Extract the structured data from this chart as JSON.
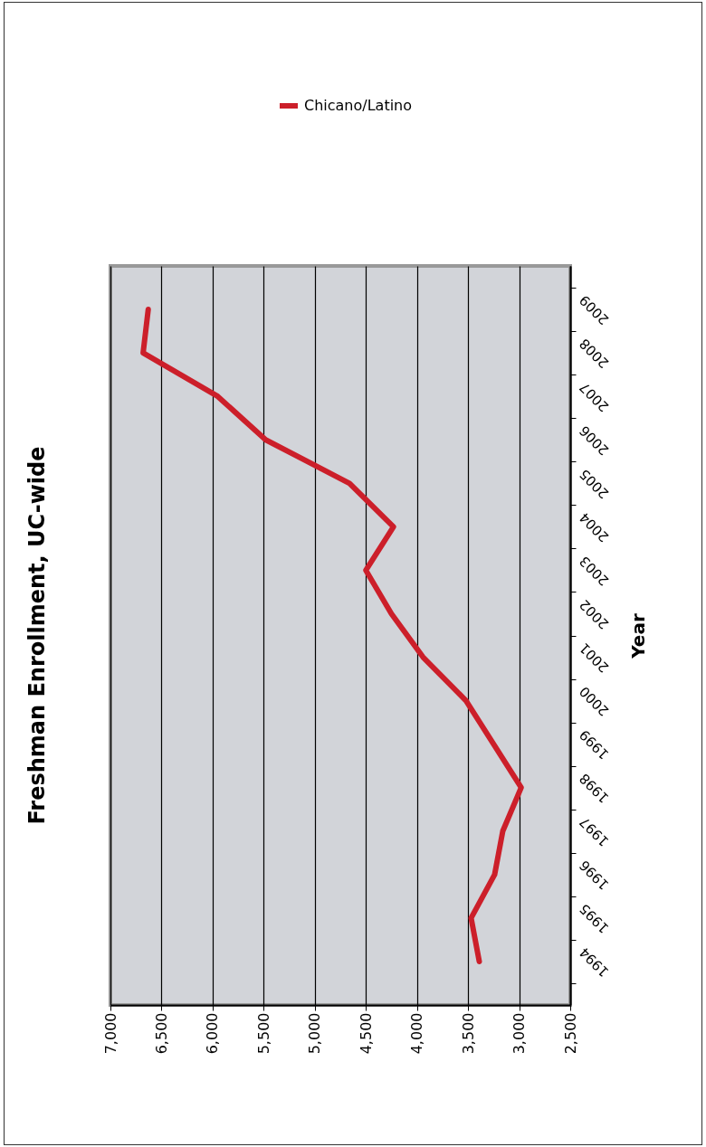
{
  "chart_data": {
    "type": "line",
    "title": "Freshman Enrollment, UC-wide",
    "ylabel": "Year",
    "categories": [
      "2009",
      "2008",
      "2007",
      "2006",
      "2005",
      "2004",
      "2003",
      "2002",
      "2001",
      "2000",
      "1999",
      "1998",
      "1997",
      "1996",
      "1995",
      "1994"
    ],
    "series": [
      {
        "name": "Chicano/Latino",
        "color": "#cc1f2a",
        "values": [
          6630,
          6680,
          5950,
          5480,
          4660,
          4230,
          4500,
          4250,
          3940,
          3520,
          3250,
          2980,
          3160,
          3240,
          3470,
          3390
        ]
      }
    ],
    "orientation": "horizontal",
    "xlim": [
      7000,
      2500
    ],
    "xticks": [
      {
        "value": 7000,
        "label": "7,000"
      },
      {
        "value": 6500,
        "label": "6,500"
      },
      {
        "value": 6000,
        "label": "6,000"
      },
      {
        "value": 5500,
        "label": "5,500"
      },
      {
        "value": 5000,
        "label": "5,000"
      },
      {
        "value": 4500,
        "label": "4,500"
      },
      {
        "value": 4000,
        "label": "4,000"
      },
      {
        "value": 3500,
        "label": "3,500"
      },
      {
        "value": 3000,
        "label": "3,000"
      },
      {
        "value": 2500,
        "label": "2,500"
      }
    ],
    "grid": "x",
    "legend": "top",
    "line_style": "solid",
    "marker": "none"
  }
}
